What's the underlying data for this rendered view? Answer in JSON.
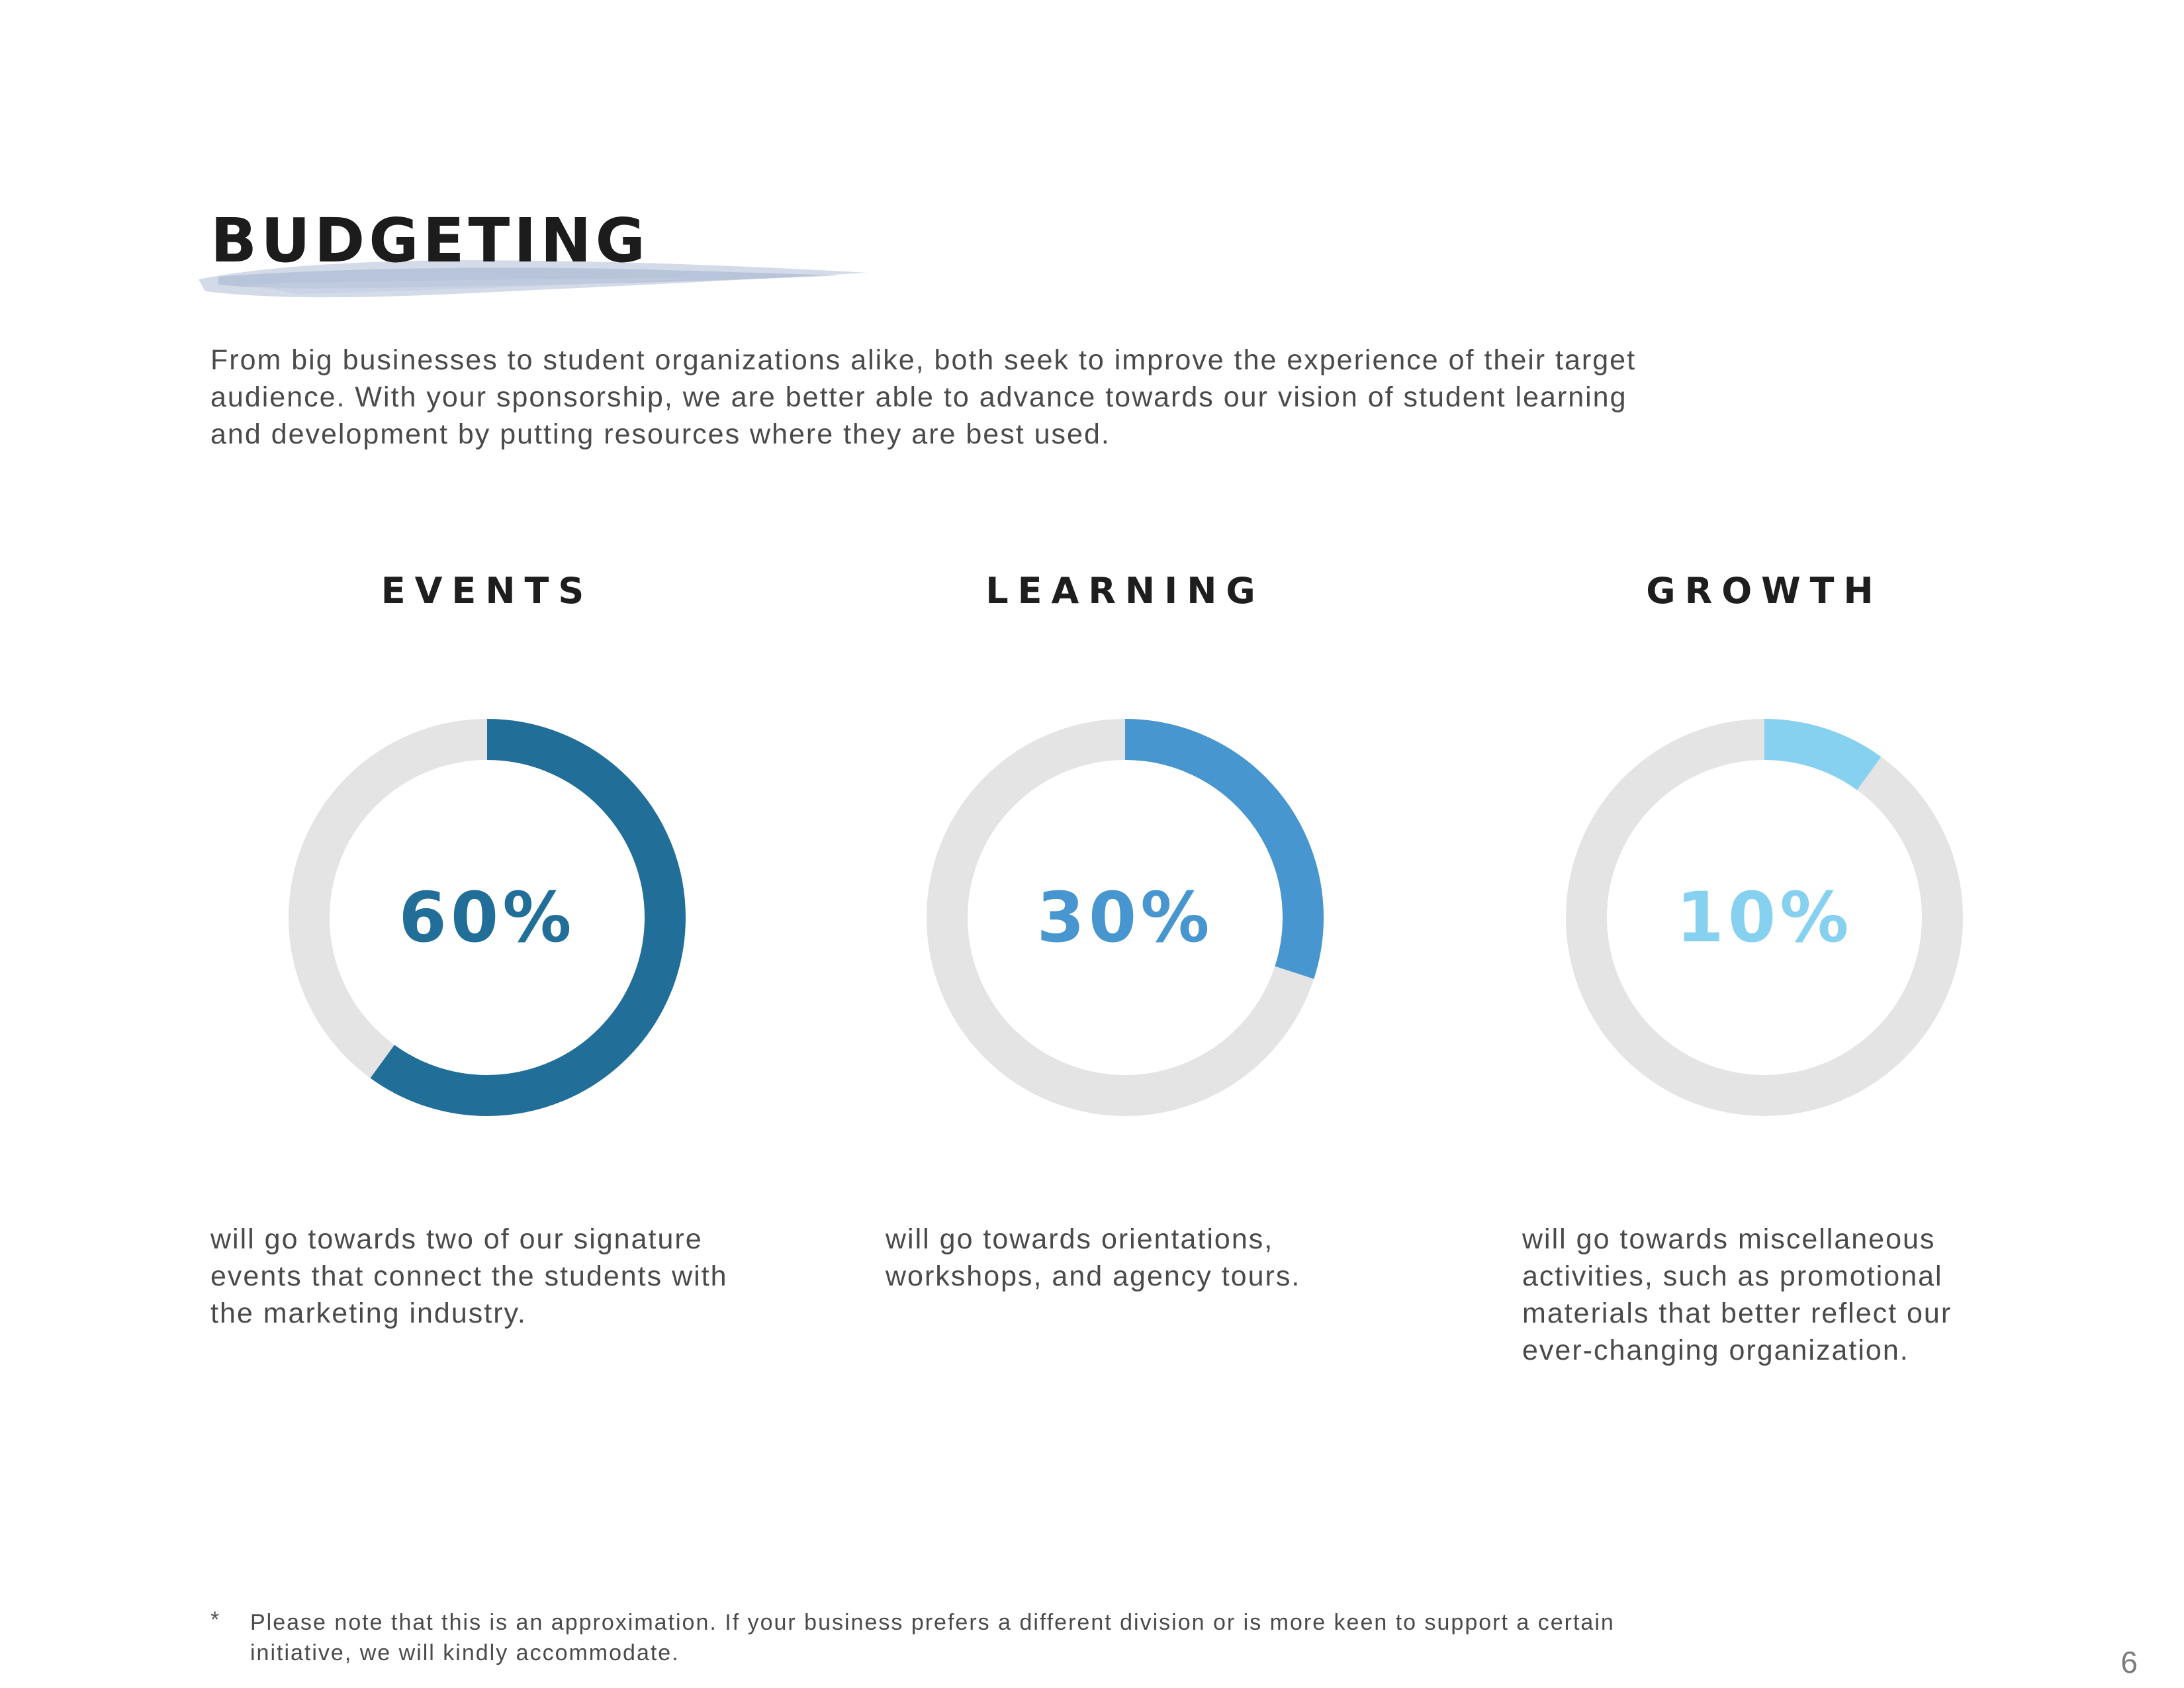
{
  "page": {
    "title": "BUDGETING",
    "intro": "From big businesses to student organizations alike, both seek to improve the experience of their target audience. With your sponsorship, we are better able to advance towards our vision of student learning and development by putting resources where they are best used.",
    "page_number": "6"
  },
  "colors": {
    "track": "#e4e4e4",
    "events": "#216e99",
    "learning": "#4796cf",
    "growth": "#86d0f0"
  },
  "categories": [
    {
      "heading": "EVENTS",
      "percent_label": "60%",
      "value": 60,
      "color": "#216e99",
      "description": "will go towards two of our signature events that connect the students with the marketing industry."
    },
    {
      "heading": "LEARNING",
      "percent_label": "30%",
      "value": 30,
      "color": "#4796cf",
      "description": "will go towards orientations, workshops, and agency tours."
    },
    {
      "heading": "GROWTH",
      "percent_label": "10%",
      "value": 10,
      "color": "#86d0f0",
      "description": "will go towards miscellaneous activities, such as promotional materials that better reflect our ever-changing organization."
    }
  ],
  "footnote": {
    "mark": "*",
    "text": "Please note that this is an approximation. If your business prefers a different division or is more keen to support a certain initiative, we will kindly accommodate."
  }
}
